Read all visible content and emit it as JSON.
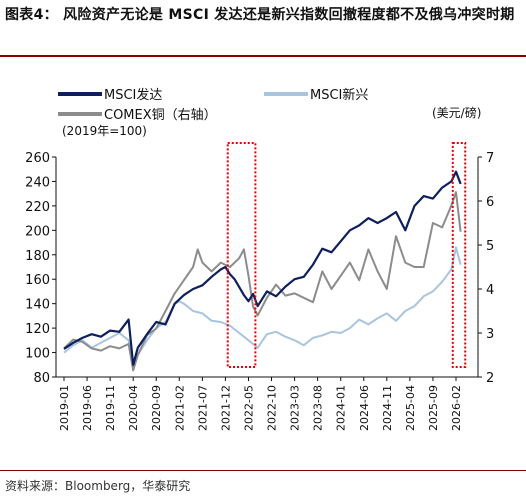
{
  "figure": {
    "title": "图表4：  风险资产无论是 MSCI 发达还是新兴指数回撤程度都不及俄乌冲突时期",
    "source": "资料来源：Bloomberg，华泰研究"
  },
  "chart_data": {
    "type": "line",
    "x_tick_labels": [
      "2019-01",
      "2019-06",
      "2019-11",
      "2020-04",
      "2020-09",
      "2021-02",
      "2021-07",
      "2021-12",
      "2022-05",
      "2022-10",
      "2023-03",
      "2023-08",
      "2024-01",
      "2024-06",
      "2024-11",
      "2025-04",
      "2025-09",
      "2026-02"
    ],
    "left_axis": {
      "label": "(2019年=100)",
      "ylim": [
        80,
        260
      ],
      "ticks": [
        80,
        100,
        120,
        140,
        160,
        180,
        200,
        220,
        240,
        260
      ]
    },
    "right_axis": {
      "label": "(美元/磅)",
      "ylim": [
        2,
        7
      ],
      "ticks": [
        2,
        3,
        4,
        5,
        6,
        7
      ]
    },
    "series": [
      {
        "name": "MSCI发达",
        "axis": "left",
        "color": "#0d1f5c",
        "points": [
          [
            0,
            103
          ],
          [
            2,
            108
          ],
          [
            4,
            112
          ],
          [
            6,
            115
          ],
          [
            8,
            113
          ],
          [
            10,
            118
          ],
          [
            12,
            117
          ],
          [
            14,
            127
          ],
          [
            15,
            90
          ],
          [
            16,
            104
          ],
          [
            18,
            115
          ],
          [
            20,
            125
          ],
          [
            22,
            123
          ],
          [
            24,
            140
          ],
          [
            26,
            147
          ],
          [
            28,
            152
          ],
          [
            30,
            155
          ],
          [
            32,
            162
          ],
          [
            34,
            168
          ],
          [
            35,
            170
          ],
          [
            36,
            164
          ],
          [
            37,
            160
          ],
          [
            39,
            147
          ],
          [
            40,
            142
          ],
          [
            41,
            148
          ],
          [
            42,
            138
          ],
          [
            44,
            150
          ],
          [
            46,
            146
          ],
          [
            48,
            154
          ],
          [
            50,
            160
          ],
          [
            52,
            162
          ],
          [
            54,
            172
          ],
          [
            56,
            185
          ],
          [
            58,
            182
          ],
          [
            60,
            191
          ],
          [
            62,
            200
          ],
          [
            64,
            204
          ],
          [
            66,
            210
          ],
          [
            68,
            206
          ],
          [
            70,
            210
          ],
          [
            72,
            215
          ],
          [
            74,
            200
          ],
          [
            76,
            220
          ],
          [
            78,
            228
          ],
          [
            80,
            226
          ],
          [
            82,
            235
          ],
          [
            84,
            240
          ],
          [
            85,
            248
          ],
          [
            86,
            238
          ]
        ]
      },
      {
        "name": "MSCI新兴",
        "axis": "left",
        "color": "#a9c4de",
        "points": [
          [
            0,
            100
          ],
          [
            2,
            106
          ],
          [
            4,
            110
          ],
          [
            6,
            104
          ],
          [
            8,
            108
          ],
          [
            10,
            112
          ],
          [
            12,
            116
          ],
          [
            14,
            110
          ],
          [
            15,
            90
          ],
          [
            16,
            98
          ],
          [
            18,
            110
          ],
          [
            20,
            120
          ],
          [
            22,
            125
          ],
          [
            24,
            140
          ],
          [
            25,
            142
          ],
          [
            26,
            140
          ],
          [
            28,
            134
          ],
          [
            30,
            132
          ],
          [
            32,
            126
          ],
          [
            34,
            125
          ],
          [
            36,
            122
          ],
          [
            38,
            116
          ],
          [
            40,
            110
          ],
          [
            42,
            104
          ],
          [
            44,
            115
          ],
          [
            46,
            117
          ],
          [
            48,
            113
          ],
          [
            50,
            110
          ],
          [
            52,
            106
          ],
          [
            54,
            112
          ],
          [
            56,
            114
          ],
          [
            58,
            117
          ],
          [
            60,
            116
          ],
          [
            62,
            120
          ],
          [
            64,
            127
          ],
          [
            66,
            123
          ],
          [
            68,
            128
          ],
          [
            70,
            132
          ],
          [
            72,
            126
          ],
          [
            74,
            134
          ],
          [
            76,
            138
          ],
          [
            78,
            146
          ],
          [
            80,
            150
          ],
          [
            82,
            158
          ],
          [
            84,
            168
          ],
          [
            85,
            186
          ],
          [
            86,
            172
          ]
        ]
      },
      {
        "name": "COMEX铜（右轴）",
        "axis": "right",
        "color": "#8c8c8c",
        "points": [
          [
            0,
            2.65
          ],
          [
            2,
            2.85
          ],
          [
            4,
            2.8
          ],
          [
            6,
            2.65
          ],
          [
            8,
            2.6
          ],
          [
            10,
            2.7
          ],
          [
            12,
            2.65
          ],
          [
            14,
            2.75
          ],
          [
            15,
            2.15
          ],
          [
            16,
            2.5
          ],
          [
            18,
            2.95
          ],
          [
            20,
            3.1
          ],
          [
            22,
            3.5
          ],
          [
            24,
            3.9
          ],
          [
            26,
            4.2
          ],
          [
            28,
            4.5
          ],
          [
            29,
            4.9
          ],
          [
            30,
            4.6
          ],
          [
            32,
            4.4
          ],
          [
            34,
            4.6
          ],
          [
            36,
            4.5
          ],
          [
            38,
            4.7
          ],
          [
            39,
            4.9
          ],
          [
            40,
            4.3
          ],
          [
            41,
            3.6
          ],
          [
            42,
            3.4
          ],
          [
            44,
            3.8
          ],
          [
            46,
            4.1
          ],
          [
            48,
            3.85
          ],
          [
            50,
            3.9
          ],
          [
            52,
            3.8
          ],
          [
            54,
            3.7
          ],
          [
            56,
            4.4
          ],
          [
            58,
            4.0
          ],
          [
            60,
            4.3
          ],
          [
            62,
            4.6
          ],
          [
            64,
            4.2
          ],
          [
            66,
            4.9
          ],
          [
            68,
            4.4
          ],
          [
            70,
            4.0
          ],
          [
            72,
            5.2
          ],
          [
            74,
            4.6
          ],
          [
            76,
            4.5
          ],
          [
            78,
            4.5
          ],
          [
            80,
            5.5
          ],
          [
            82,
            5.4
          ],
          [
            84,
            5.9
          ],
          [
            85,
            6.2
          ],
          [
            86,
            5.3
          ]
        ]
      }
    ],
    "highlight_boxes": [
      {
        "x_from": 35.5,
        "x_to": 41.5
      },
      {
        "x_from": 84.3,
        "x_to": 87
      }
    ],
    "legend": {
      "placement": "top-left"
    }
  }
}
